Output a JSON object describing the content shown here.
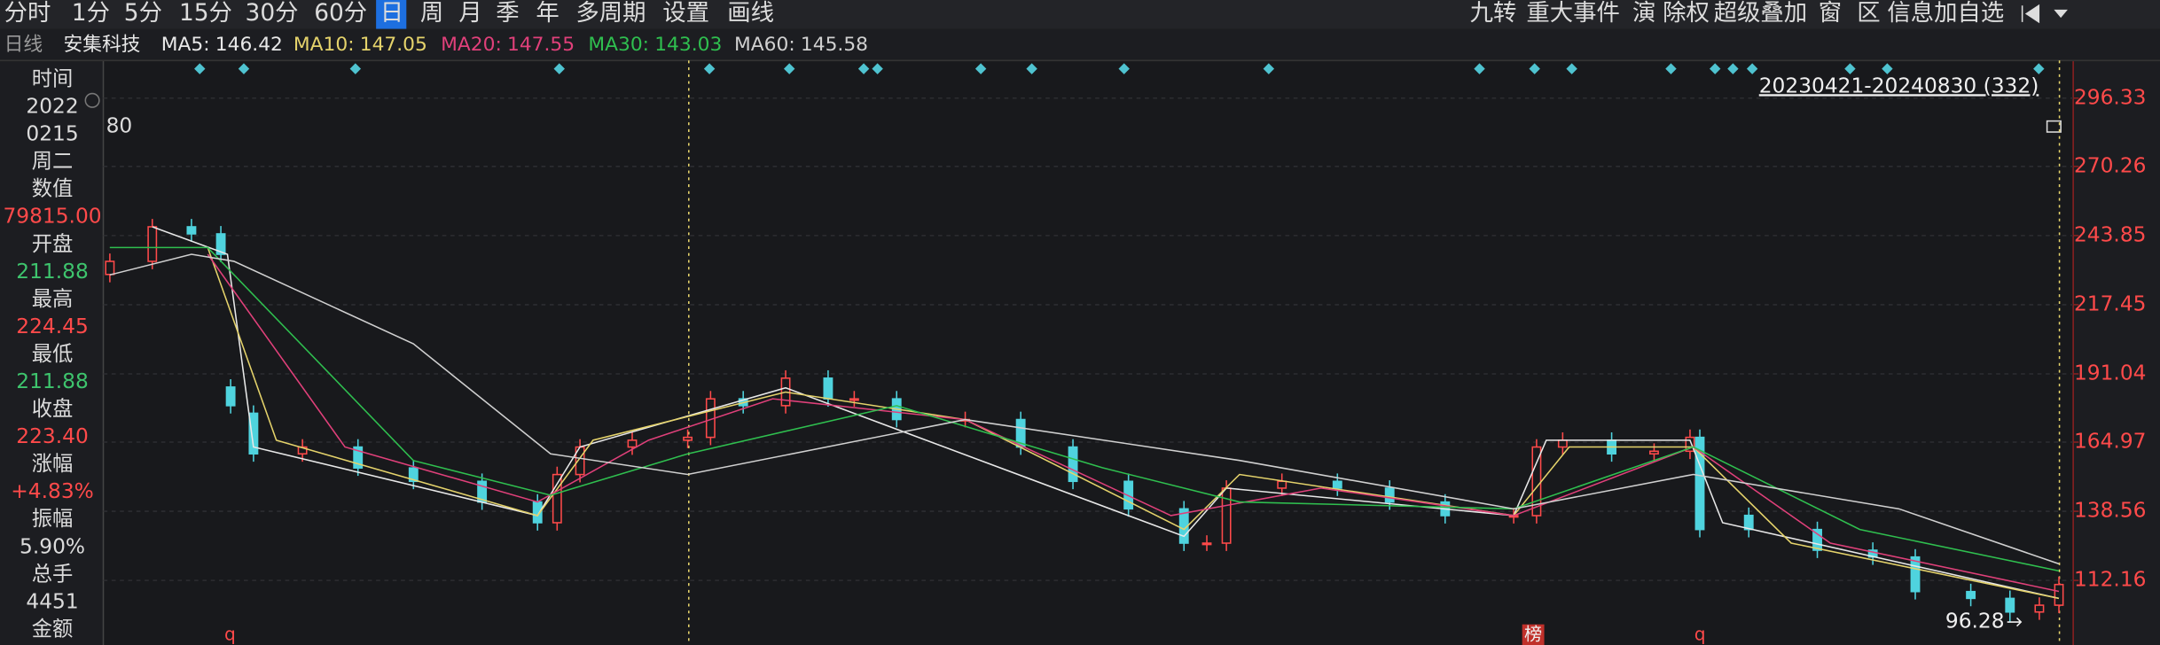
{
  "toolbar": {
    "left": [
      "分时",
      "1分",
      "5分",
      "15分",
      "30分",
      "60分",
      "日",
      "周",
      "月",
      "季",
      "年",
      "多周期",
      "设置",
      "画线"
    ],
    "active": 6,
    "right": [
      "九转",
      "重大事件",
      "演",
      "除权",
      "超级叠加",
      "窗",
      "区",
      "信息加自选"
    ]
  },
  "ma_bar": {
    "period": "日线",
    "stock": "安集科技"
  },
  "info_panel": [
    {
      "text": "时间",
      "color": "#dcdcdc"
    },
    {
      "text": "2022",
      "color": "#dcdcdc"
    },
    {
      "text": "0215",
      "color": "#dcdcdc"
    },
    {
      "text": "周二",
      "color": "#dcdcdc"
    },
    {
      "text": "数值",
      "color": "#dcdcdc"
    },
    {
      "text": "79815.00",
      "color": "#ff4a4a"
    },
    {
      "text": "开盘",
      "color": "#dcdcdc"
    },
    {
      "text": "211.88",
      "color": "#3ec46d"
    },
    {
      "text": "最高",
      "color": "#dcdcdc"
    },
    {
      "text": "224.45",
      "color": "#ff4a4a"
    },
    {
      "text": "最低",
      "color": "#dcdcdc"
    },
    {
      "text": "211.88",
      "color": "#3ec46d"
    },
    {
      "text": "收盘",
      "color": "#dcdcdc"
    },
    {
      "text": "223.40",
      "color": "#ff4a4a"
    },
    {
      "text": "涨幅",
      "color": "#dcdcdc"
    },
    {
      "text": "+4.83%",
      "color": "#ff4a4a"
    },
    {
      "text": "振幅",
      "color": "#dcdcdc"
    },
    {
      "text": "5.90%",
      "color": "#dcdcdc"
    },
    {
      "text": "总手",
      "color": "#dcdcdc"
    },
    {
      "text": "4451",
      "color": "#dcdcdc"
    },
    {
      "text": "金额",
      "color": "#dcdcdc"
    }
  ],
  "chart_data": {
    "type": "candlestick",
    "x": [
      2,
      15,
      27,
      36,
      39,
      46,
      61,
      78,
      95,
      116,
      133,
      139,
      146,
      162,
      179,
      186,
      196,
      209,
      222,
      230,
      243,
      264,
      281,
      297,
      314,
      331,
      338,
      344,
      361,
      378,
      394,
      411,
      432,
      439,
      447,
      462,
      475,
      486,
      489,
      504,
      525,
      542,
      555,
      572,
      584,
      593,
      599
    ],
    "open": [
      229,
      234.0,
      247.2,
      244.5,
      186,
      176,
      160.5,
      163.1,
      155.1,
      150.0,
      142.1,
      134.2,
      152.6,
      163.1,
      165.7,
      166.8,
      181.5,
      178.9,
      189.4,
      181.5,
      181.5,
      173.6,
      173.6,
      163.1,
      150.0,
      139.5,
      126.4,
      126.4,
      147.4,
      150.0,
      147.4,
      142.1,
      136.9,
      136.9,
      163.1,
      165.7,
      160.5,
      161.5,
      166.8,
      137,
      131.6,
      123.7,
      121.1,
      107.9,
      105.3,
      100.1,
      102.7
    ],
    "high": [
      237.0,
      250.2,
      250.2,
      247.5,
      189.0,
      179.0,
      166.1,
      166.1,
      158.1,
      153.0,
      145.1,
      155.6,
      166.1,
      168.7,
      169.8,
      184.5,
      184.5,
      192.4,
      192.4,
      184.5,
      184.5,
      176.6,
      176.6,
      166.1,
      153.0,
      142.5,
      129.4,
      150.4,
      153.0,
      153.0,
      150.4,
      145.1,
      139.9,
      166.1,
      168.7,
      168.7,
      164.5,
      169.8,
      169.8,
      140.0,
      134.6,
      126.7,
      124.1,
      110.9,
      108.3,
      105.7,
      113.6
    ],
    "low": [
      226.0,
      231.0,
      241.5,
      233.7,
      175.9,
      157.5,
      157.5,
      152.1,
      147.0,
      139.1,
      131.2,
      131.2,
      149.6,
      160.1,
      162.7,
      163.8,
      175.9,
      175.9,
      178.5,
      178.5,
      170.6,
      170.6,
      160.1,
      147.0,
      136.5,
      123.4,
      123.4,
      123.4,
      144.4,
      144.4,
      139.1,
      133.9,
      133.9,
      133.9,
      160.1,
      157.5,
      157.5,
      158.5,
      128.6,
      128.6,
      120.7,
      118.1,
      104.9,
      102.3,
      96.28,
      97.1,
      99.7
    ],
    "close": [
      234.0,
      247.2,
      244.5,
      236.7,
      178.9,
      160.5,
      163.1,
      155.1,
      150.0,
      142.1,
      134.2,
      152.6,
      163.1,
      165.7,
      166.8,
      181.5,
      178.9,
      189.4,
      181.5,
      181.5,
      173.6,
      173.6,
      163.1,
      150.0,
      139.5,
      126.4,
      126.4,
      147.4,
      150.0,
      147.4,
      142.1,
      136.9,
      136.9,
      163.1,
      165.7,
      160.5,
      161.5,
      166.8,
      131.6,
      131.6,
      123.7,
      121.1,
      107.9,
      105.3,
      100.1,
      102.7,
      110.6
    ],
    "up_color": "#ff4a4a",
    "down_color": "#4fd3de",
    "xlim": [
      0,
      600
    ],
    "ylim": [
      87.5,
      310.7
    ],
    "yticks": [
      296.33,
      270.26,
      243.85,
      217.45,
      191.04,
      164.97,
      138.56,
      112.16
    ],
    "grid": true,
    "series": [
      {
        "name": "MA5:",
        "current": 146.42,
        "color": "#e8e8e8",
        "x": [
          15,
          38,
          46,
          133,
          146,
          209,
          331,
          344,
          432,
          442,
          486,
          496,
          599
        ],
        "values": [
          247.2,
          236.7,
          163.1,
          136.9,
          163.1,
          185.7,
          129.0,
          147.4,
          136.9,
          165.7,
          165.7,
          134.2,
          105.3
        ]
      },
      {
        "name": "MA10:",
        "current": 147.05,
        "color": "#e5d36b",
        "x": [
          32,
          53,
          133,
          150,
          209,
          264,
          331,
          348,
          432,
          449,
          487,
          517,
          599
        ],
        "values": [
          239.3,
          165.7,
          136.9,
          165.7,
          184.1,
          173.6,
          131.6,
          152.6,
          136.9,
          163.1,
          163.1,
          126.4,
          105.3
        ]
      },
      {
        "name": "MA20:",
        "current": 147.55,
        "color": "#e0407a",
        "x": [
          32,
          74,
          133,
          167,
          205,
          264,
          327,
          373,
          432,
          487,
          529,
          599
        ],
        "values": [
          236.7,
          163.1,
          142.1,
          165.7,
          181.5,
          173.6,
          136.9,
          147.4,
          136.9,
          163.1,
          126.4,
          108.0
        ]
      },
      {
        "name": "MA30:",
        "current": 143.03,
        "color": "#2fbf4f",
        "x": [
          2,
          32,
          95,
          137,
          179,
          243,
          306,
          348,
          432,
          487,
          538,
          599
        ],
        "values": [
          239.3,
          239.3,
          157.9,
          144.7,
          160.5,
          178.9,
          155.2,
          142.1,
          139.5,
          163.1,
          131.6,
          115.8
        ]
      },
      {
        "name": "MA60:",
        "current": 145.58,
        "color": "#d0d0d0",
        "x": [
          2,
          27,
          40,
          95,
          137,
          179,
          264,
          348,
          432,
          487,
          550,
          599
        ],
        "values": [
          228.8,
          236.7,
          234.0,
          202.5,
          160.5,
          152.6,
          173.6,
          158.0,
          139.5,
          152.6,
          139.5,
          118.5
        ]
      }
    ],
    "range_label": "20230421-20240830 (332)",
    "high_note": "80",
    "low_label": 96.28,
    "markers": [
      "q",
      "榜",
      "q"
    ]
  }
}
